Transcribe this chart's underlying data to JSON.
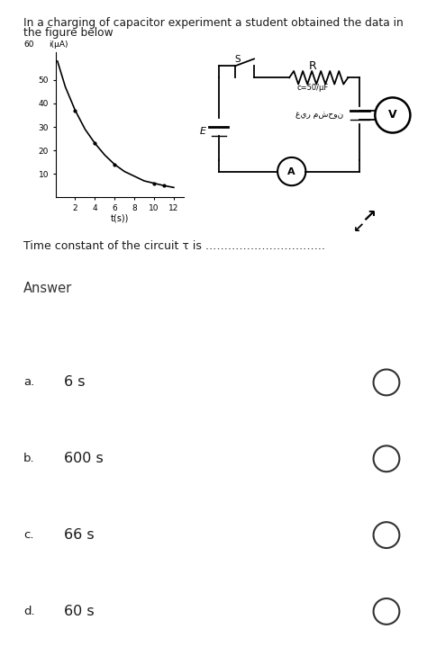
{
  "title_line1": "In a charging of capacitor experiment a student obtained the data in",
  "title_line2": "the figure below",
  "question_text": "Time constant of the circuit τ is …………………………..",
  "answer_label": "Answer",
  "options": [
    {
      "letter": "a.",
      "text": "6 s"
    },
    {
      "letter": "b.",
      "text": "600 s"
    },
    {
      "letter": "c.",
      "text": "66 s"
    },
    {
      "letter": "d.",
      "text": "60 s"
    }
  ],
  "graph": {
    "ytick_label_top": "60",
    "ylabel": "i(μA)",
    "yticks": [
      10,
      20,
      30,
      40,
      50
    ],
    "xlabel": "t(s))",
    "xticks": [
      2,
      4,
      6,
      8,
      10,
      12
    ],
    "curve_x": [
      0.2,
      1,
      2,
      3,
      4,
      5,
      6,
      7,
      8,
      9,
      10,
      11,
      12
    ],
    "curve_y": [
      58,
      47,
      37,
      29,
      23,
      18,
      14,
      11,
      9,
      7,
      6,
      5,
      4.2
    ]
  },
  "bg_color": "#ffffff",
  "text_color": "#1a1a1a",
  "option_bg_colors": [
    "#ffffff",
    "#f2f2f2",
    "#ffffff",
    "#f2f2f2"
  ],
  "divider_color": "#d0d0d0"
}
